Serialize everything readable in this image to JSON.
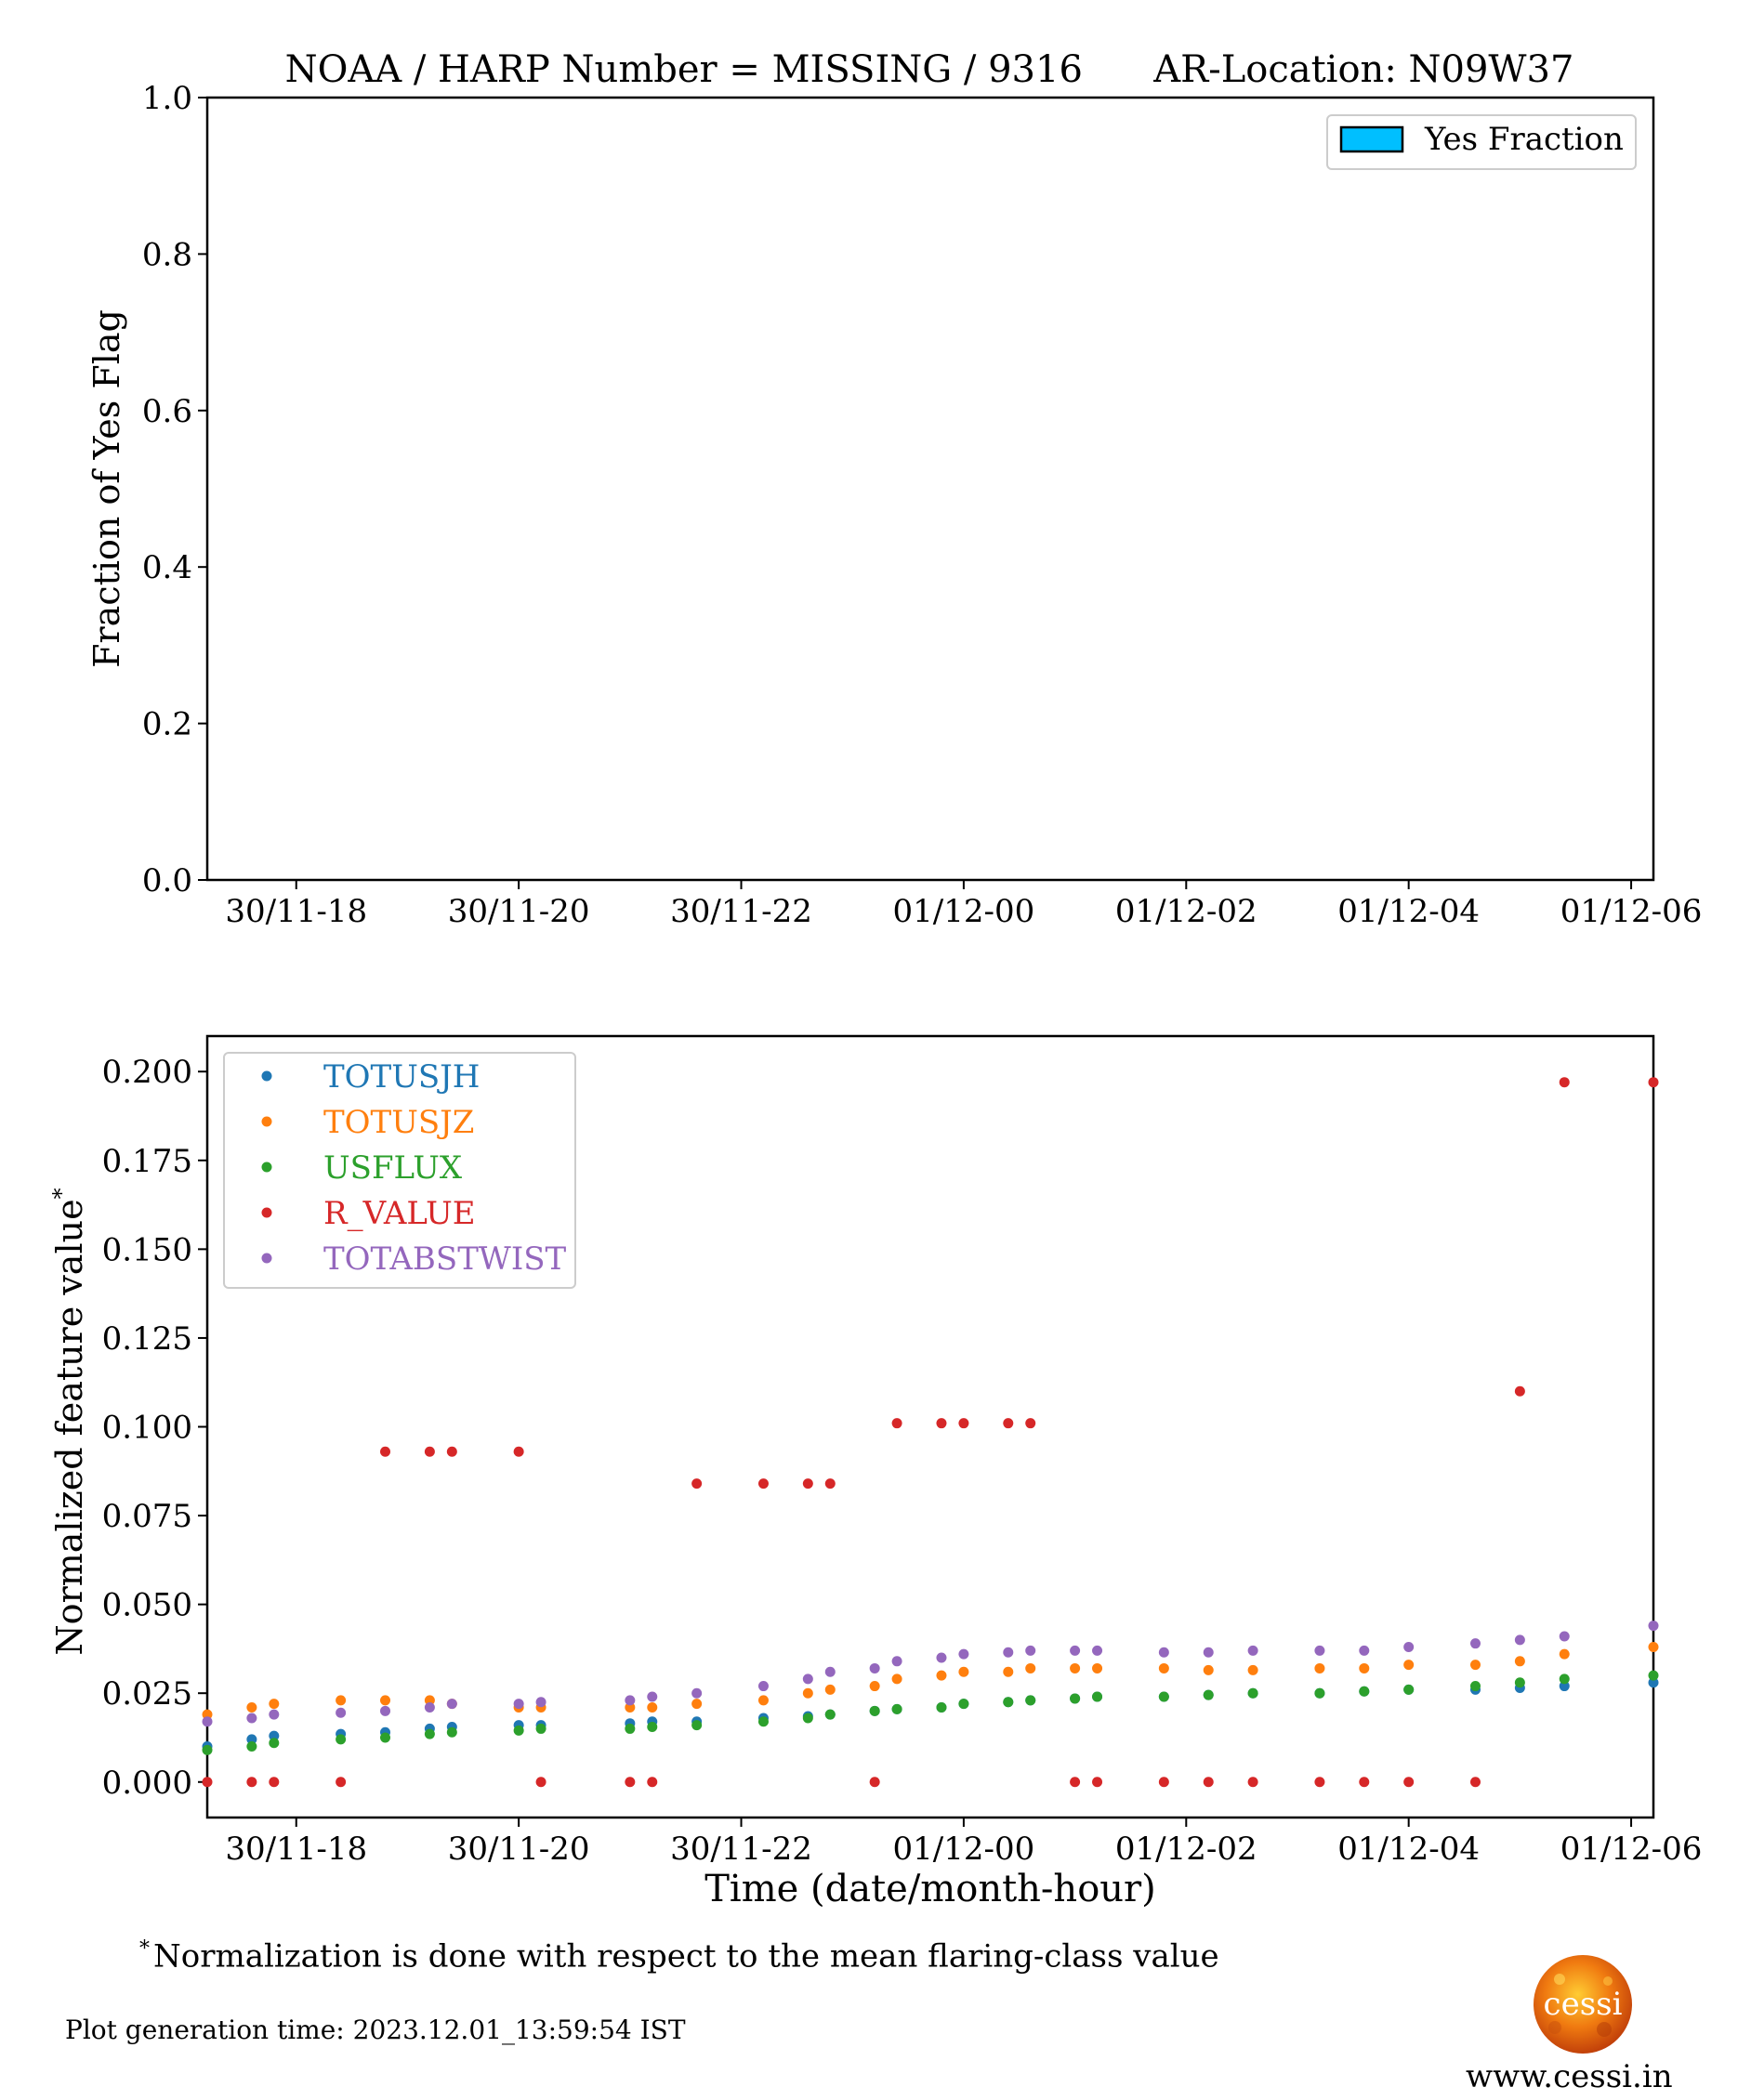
{
  "chart_data": [
    {
      "type": "bar",
      "title": "NOAA / HARP Number = MISSING / 9316      AR-Location: N09W37",
      "xlabel": "",
      "ylabel": "Fraction of Yes Flag",
      "ylim": [
        0,
        1.0
      ],
      "yticks": [
        "0.0",
        "0.2",
        "0.4",
        "0.6",
        "0.8",
        "1.0"
      ],
      "xticks": [
        "30/11-18",
        "30/11-20",
        "30/11-22",
        "01/12-00",
        "01/12-02",
        "01/12-04",
        "01/12-06"
      ],
      "xlim_hours": [
        17.2,
        30.2
      ],
      "legend": [
        "Yes Fraction"
      ],
      "legend_position": "top-right",
      "bar_color": "#00bfff",
      "values": []
    },
    {
      "type": "scatter",
      "xlabel": "Time (date/month-hour)",
      "ylabel": "Normalized feature value",
      "ylabel_sup": "*",
      "ylim": [
        -0.01,
        0.21
      ],
      "yticks": [
        "0.000",
        "0.025",
        "0.050",
        "0.075",
        "0.100",
        "0.125",
        "0.150",
        "0.175",
        "0.200"
      ],
      "xticks": [
        "30/11-18",
        "30/11-20",
        "30/11-22",
        "01/12-00",
        "01/12-02",
        "01/12-04",
        "01/12-06"
      ],
      "xlim_hours": [
        17.2,
        30.2
      ],
      "legend_position": "top-left",
      "x_hours": [
        17.2,
        17.6,
        17.8,
        18.4,
        18.8,
        19.2,
        19.4,
        20.0,
        20.2,
        21.0,
        21.2,
        21.6,
        22.2,
        22.6,
        22.8,
        23.2,
        23.4,
        23.8,
        24.0,
        24.4,
        24.6,
        25.0,
        25.2,
        25.8,
        26.2,
        26.6,
        27.2,
        27.6,
        28.0,
        28.6,
        29.0,
        29.4,
        30.2
      ],
      "series": [
        {
          "name": "TOTUSJH",
          "color": "#1f77b4",
          "values": [
            0.01,
            0.012,
            0.013,
            0.0135,
            0.014,
            0.015,
            0.0155,
            0.016,
            0.016,
            0.0165,
            0.017,
            0.017,
            0.018,
            0.0185,
            0.019,
            0.02,
            0.0205,
            0.021,
            0.022,
            0.0225,
            0.023,
            0.0235,
            0.024,
            0.024,
            0.0245,
            0.025,
            0.025,
            0.0255,
            0.026,
            0.026,
            0.0265,
            0.027,
            0.028
          ]
        },
        {
          "name": "TOTUSJZ",
          "color": "#ff7f0e",
          "values": [
            0.019,
            0.021,
            0.022,
            0.023,
            0.023,
            0.023,
            0.022,
            0.021,
            0.021,
            0.021,
            0.021,
            0.022,
            0.023,
            0.025,
            0.026,
            0.027,
            0.029,
            0.03,
            0.031,
            0.031,
            0.032,
            0.032,
            0.032,
            0.032,
            0.0315,
            0.0315,
            0.032,
            0.032,
            0.033,
            0.033,
            0.034,
            0.036,
            0.038
          ]
        },
        {
          "name": "USFLUX",
          "color": "#2ca02c",
          "values": [
            0.009,
            0.01,
            0.011,
            0.012,
            0.0125,
            0.0135,
            0.014,
            0.0145,
            0.015,
            0.015,
            0.0155,
            0.016,
            0.017,
            0.018,
            0.019,
            0.02,
            0.0205,
            0.021,
            0.022,
            0.0225,
            0.023,
            0.0235,
            0.024,
            0.024,
            0.0245,
            0.025,
            0.025,
            0.0255,
            0.026,
            0.027,
            0.028,
            0.029,
            0.03
          ]
        },
        {
          "name": "R_VALUE",
          "color": "#d62728",
          "values": [
            0.0,
            0.0,
            0.0,
            0.0,
            0.093,
            0.093,
            0.093,
            0.093,
            0.0,
            0.0,
            0.0,
            0.084,
            0.084,
            0.084,
            0.084,
            0.0,
            0.101,
            0.101,
            0.101,
            0.101,
            0.101,
            0.0,
            0.0,
            0.0,
            0.0,
            0.0,
            0.0,
            0.0,
            0.0,
            0.0,
            0.11,
            0.197,
            0.197
          ]
        },
        {
          "name": "TOTABSTWIST",
          "color": "#9467bd",
          "values": [
            0.017,
            0.018,
            0.019,
            0.0195,
            0.02,
            0.021,
            0.022,
            0.022,
            0.0225,
            0.023,
            0.024,
            0.025,
            0.027,
            0.029,
            0.031,
            0.032,
            0.034,
            0.035,
            0.036,
            0.0365,
            0.037,
            0.037,
            0.037,
            0.0365,
            0.0365,
            0.037,
            0.037,
            0.037,
            0.038,
            0.039,
            0.04,
            0.041,
            0.044
          ]
        }
      ]
    }
  ],
  "footnote": {
    "marker": "*",
    "text": "Normalization is done with respect to the mean flaring-class value"
  },
  "generation_time": "Plot generation time: 2023.12.01_13:59:54 IST",
  "logo_text": "cessi",
  "website": "www.cessi.in"
}
